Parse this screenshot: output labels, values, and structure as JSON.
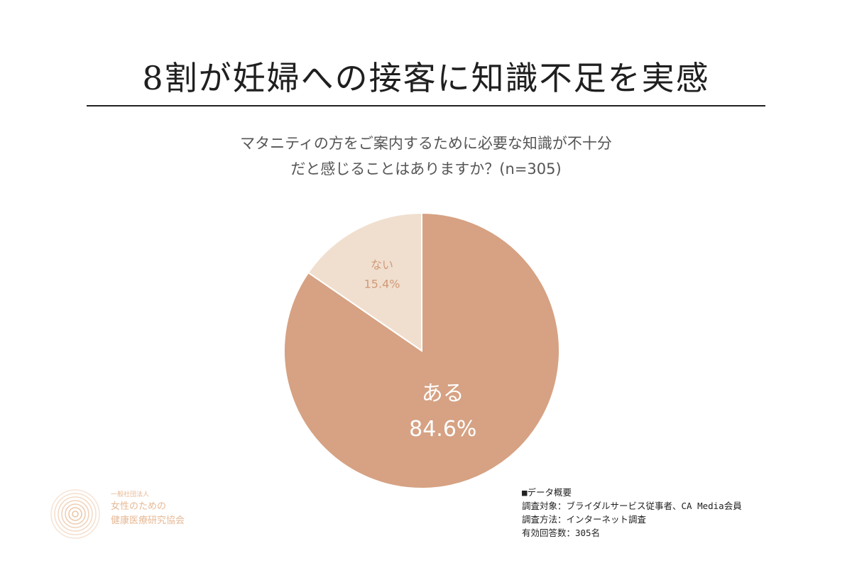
{
  "header": {
    "title": "8割が妊婦への接客に知識不足を実感"
  },
  "chart_data": {
    "type": "pie",
    "title": "8割が妊婦への接客に知識不足を実感",
    "subtitle_lines": [
      "マタニティの方をご案内するために必要な知識が不十分",
      "だと感じることはありますか？(n=305)"
    ],
    "slices": [
      {
        "label": "ある",
        "value": 84.6,
        "value_label": "84.6%",
        "color": "#d6a283",
        "label_color": "#ffffff"
      },
      {
        "label": "ない",
        "value": 15.4,
        "value_label": "15.4%",
        "color": "#f0dfcf",
        "label_color": "#d09a78"
      }
    ],
    "start": "12 o'clock",
    "direction": "clockwise"
  },
  "logo": {
    "line1": "一般社団法人",
    "line2": "女性のための",
    "line3": "健康医療研究協会",
    "color": "#e6b894"
  },
  "notes": {
    "heading": "■データ概要",
    "lines": [
      "調査対象：ブライダルサービス従事者、CA Media会員",
      "調査方法：インターネット調査",
      "有効回答数：305名"
    ]
  }
}
